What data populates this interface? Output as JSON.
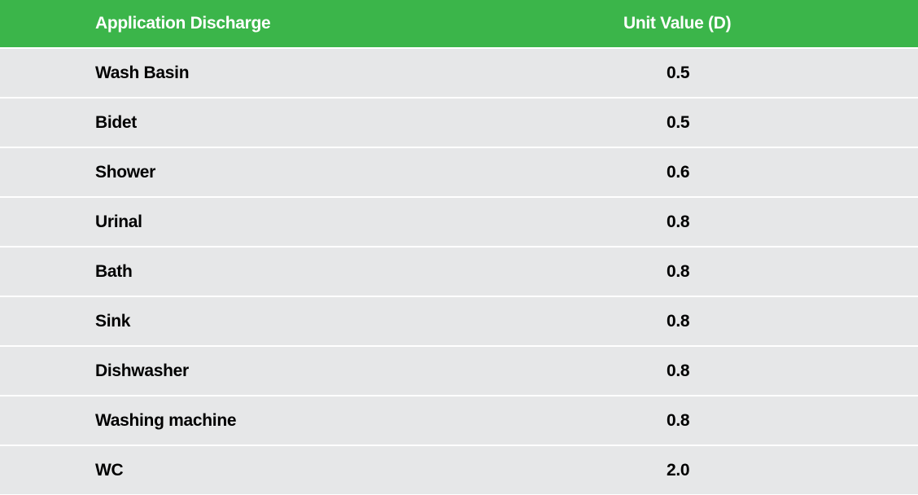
{
  "table": {
    "headers": {
      "name": "Application Discharge",
      "value": "Unit Value (D)"
    },
    "rows": [
      {
        "name": "Wash Basin",
        "value": "0.5"
      },
      {
        "name": "Bidet",
        "value": "0.5"
      },
      {
        "name": "Shower",
        "value": "0.6"
      },
      {
        "name": "Urinal",
        "value": "0.8"
      },
      {
        "name": "Bath",
        "value": "0.8"
      },
      {
        "name": "Sink",
        "value": "0.8"
      },
      {
        "name": "Dishwasher",
        "value": "0.8"
      },
      {
        "name": "Washing machine",
        "value": "0.8"
      },
      {
        "name": "WC",
        "value": "2.0"
      }
    ]
  },
  "colors": {
    "header_background": "#3bb54a",
    "row_background": "#e6e7e8",
    "header_text": "#ffffff",
    "body_text": "#000000"
  }
}
